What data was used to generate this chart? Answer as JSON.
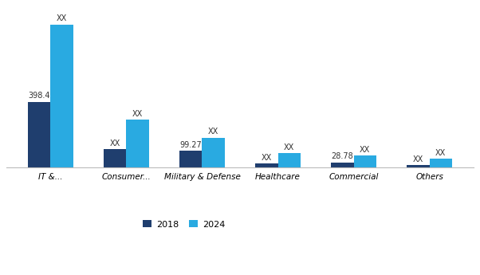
{
  "categories": [
    "IT &...",
    "Consumer...",
    "Military & Defense",
    "Healthcare",
    "Commercial",
    "Others"
  ],
  "values_2018": [
    398.4,
    110,
    99.27,
    22,
    28.78,
    12
  ],
  "values_2024": [
    870,
    290,
    180,
    85,
    72,
    52
  ],
  "labels_2018": [
    "398.4",
    "XX",
    "99.27",
    "XX",
    "28.78",
    "XX"
  ],
  "labels_2024": [
    "XX",
    "XX",
    "XX",
    "XX",
    "XX",
    "XX"
  ],
  "color_2018": "#1f3e6e",
  "color_2024": "#29aae1",
  "legend_2018": "2018",
  "legend_2024": "2024",
  "bar_width": 0.3,
  "background_color": "#ffffff",
  "ylim": [
    0,
    980
  ]
}
